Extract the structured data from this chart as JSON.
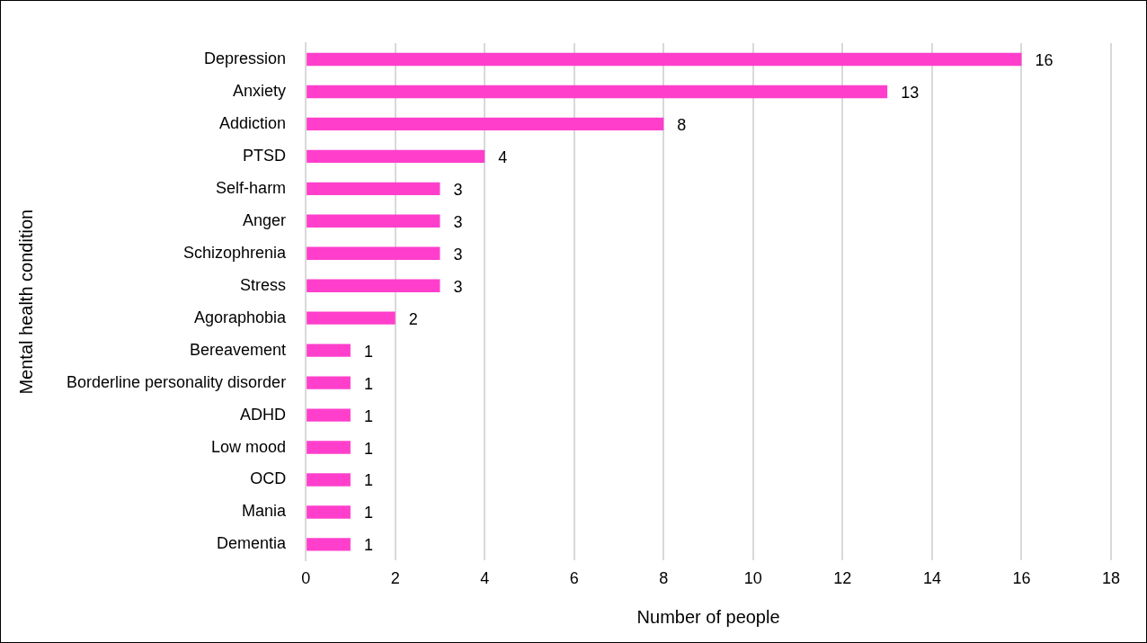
{
  "chart_data": {
    "type": "bar",
    "orientation": "horizontal",
    "xlabel": "Number of people",
    "ylabel": "Mental health condition",
    "categories": [
      "Depression",
      "Anxiety",
      "Addiction",
      "PTSD",
      "Self-harm",
      "Anger",
      "Schizophrenia",
      "Stress",
      "Agoraphobia",
      "Bereavement",
      "Borderline personality disorder",
      "ADHD",
      "Low mood",
      "OCD",
      "Mania",
      "Dementia"
    ],
    "values": [
      16,
      13,
      8,
      4,
      3,
      3,
      3,
      3,
      2,
      1,
      1,
      1,
      1,
      1,
      1,
      1
    ],
    "color": "#ff3fcc",
    "xlim": [
      0,
      18
    ],
    "xticks": [
      0,
      2,
      4,
      6,
      8,
      10,
      12,
      14,
      16,
      18
    ],
    "grid": "x",
    "data_labels": true,
    "legend": false
  }
}
